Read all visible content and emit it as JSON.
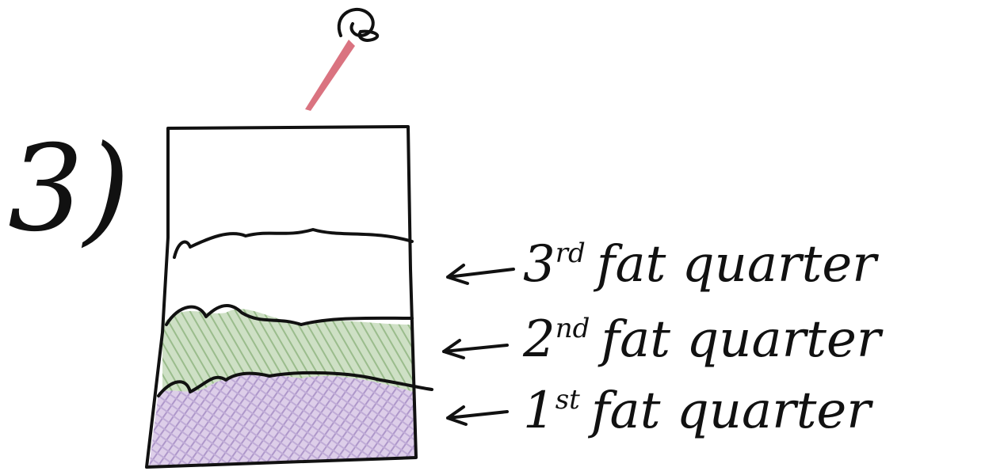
{
  "step": "3)",
  "labels": [
    {
      "number": "3",
      "suffix": "rd",
      "text": "fat quarter"
    },
    {
      "number": "2",
      "suffix": "nd",
      "text": "fat quarter"
    },
    {
      "number": "1",
      "suffix": "st",
      "text": "fat quarter"
    }
  ]
}
